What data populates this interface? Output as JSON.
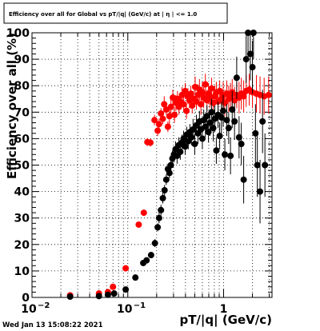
{
  "chart_data": {
    "type": "scatter",
    "title": "Efficiency over all for Global vs pT/|q| (GeV/c) at | η | <= 1.0",
    "xlabel": "pT/|q| (GeV/c)",
    "ylabel": "Efficiency over all (%)",
    "timestamp": "Wed Jan 13 15:08:22 2021",
    "x_scale": "log",
    "xlim": [
      0.01,
      3.2
    ],
    "ylim": [
      0,
      100
    ],
    "x_ticks": [
      {
        "value": 0.01,
        "label": "10",
        "sup": "−2"
      },
      {
        "value": 0.1,
        "label": "10",
        "sup": "−1"
      },
      {
        "value": 1,
        "label": "1",
        "sup": ""
      }
    ],
    "y_ticks": [
      0,
      10,
      20,
      30,
      40,
      50,
      60,
      70,
      80,
      90,
      100
    ],
    "grid": true,
    "series": [
      {
        "color": "#ff0000",
        "points": [
          [
            0.025,
            0.8,
            0.5
          ],
          [
            0.05,
            1.5,
            1
          ],
          [
            0.062,
            2,
            1
          ],
          [
            0.07,
            4,
            1
          ],
          [
            0.095,
            11,
            1
          ],
          [
            0.13,
            27.5,
            1
          ],
          [
            0.147,
            32,
            1
          ],
          [
            0.16,
            58.7,
            1.5
          ],
          [
            0.172,
            58.5,
            1.5
          ],
          [
            0.19,
            67,
            2
          ],
          [
            0.205,
            63,
            2
          ],
          [
            0.212,
            65.5,
            2
          ],
          [
            0.222,
            69.5,
            2
          ],
          [
            0.232,
            67.5,
            2
          ],
          [
            0.24,
            73,
            3
          ],
          [
            0.252,
            71,
            2
          ],
          [
            0.262,
            64.5,
            2
          ],
          [
            0.272,
            68.5,
            3
          ],
          [
            0.282,
            72,
            3
          ],
          [
            0.295,
            75.5,
            3
          ],
          [
            0.307,
            69,
            3
          ],
          [
            0.318,
            73.5,
            3
          ],
          [
            0.33,
            75,
            3
          ],
          [
            0.342,
            72,
            3
          ],
          [
            0.355,
            74,
            3
          ],
          [
            0.368,
            76.5,
            3
          ],
          [
            0.383,
            73,
            3
          ],
          [
            0.397,
            78,
            3
          ],
          [
            0.41,
            70.5,
            3
          ],
          [
            0.425,
            76,
            3
          ],
          [
            0.44,
            74.5,
            3
          ],
          [
            0.455,
            77,
            3
          ],
          [
            0.47,
            72.5,
            3
          ],
          [
            0.487,
            75,
            3
          ],
          [
            0.505,
            79.5,
            4
          ],
          [
            0.52,
            74,
            3
          ],
          [
            0.54,
            76.5,
            4
          ],
          [
            0.56,
            78.5,
            4
          ],
          [
            0.58,
            73,
            4
          ],
          [
            0.6,
            77.5,
            4
          ],
          [
            0.62,
            75.5,
            4
          ],
          [
            0.645,
            80.5,
            4
          ],
          [
            0.67,
            74.5,
            4
          ],
          [
            0.695,
            77,
            4
          ],
          [
            0.72,
            75.5,
            4
          ],
          [
            0.75,
            79,
            4
          ],
          [
            0.78,
            73.5,
            4
          ],
          [
            0.81,
            76,
            4
          ],
          [
            0.84,
            77.5,
            4
          ],
          [
            0.875,
            74,
            4
          ],
          [
            0.91,
            78,
            4
          ],
          [
            0.95,
            75,
            4
          ],
          [
            0.99,
            76.5,
            5
          ],
          [
            1.03,
            73.5,
            5
          ],
          [
            1.08,
            77,
            5
          ],
          [
            1.13,
            75,
            5
          ],
          [
            1.18,
            76,
            5
          ],
          [
            1.23,
            77.5,
            5
          ],
          [
            1.3,
            74.5,
            5
          ],
          [
            1.37,
            76.5,
            5
          ],
          [
            1.45,
            75.5,
            6
          ],
          [
            1.53,
            77,
            6
          ],
          [
            1.62,
            76,
            6
          ],
          [
            1.72,
            78,
            6
          ],
          [
            1.85,
            78.5,
            6
          ],
          [
            2.0,
            77.5,
            6
          ],
          [
            2.2,
            77,
            7
          ],
          [
            2.4,
            76.5,
            7
          ],
          [
            2.65,
            76,
            7
          ],
          [
            2.95,
            76.5,
            7
          ]
        ]
      },
      {
        "color": "#000000",
        "points": [
          [
            0.025,
            0.3,
            0.3
          ],
          [
            0.05,
            0.5,
            0.5
          ],
          [
            0.062,
            1,
            0.5
          ],
          [
            0.072,
            1.5,
            1
          ],
          [
            0.095,
            3,
            1
          ],
          [
            0.12,
            7.5,
            1
          ],
          [
            0.145,
            13,
            1
          ],
          [
            0.157,
            14,
            1
          ],
          [
            0.175,
            16,
            1
          ],
          [
            0.192,
            20.5,
            1.5
          ],
          [
            0.205,
            26.5,
            1.5
          ],
          [
            0.212,
            30,
            2
          ],
          [
            0.222,
            33,
            2
          ],
          [
            0.232,
            37.5,
            2
          ],
          [
            0.242,
            40.5,
            2
          ],
          [
            0.252,
            44.5,
            2
          ],
          [
            0.262,
            48.5,
            2
          ],
          [
            0.272,
            47,
            2
          ],
          [
            0.282,
            50,
            3
          ],
          [
            0.292,
            52.5,
            3
          ],
          [
            0.303,
            54,
            3
          ],
          [
            0.315,
            56,
            3
          ],
          [
            0.327,
            53.5,
            3
          ],
          [
            0.34,
            57.5,
            3
          ],
          [
            0.353,
            55,
            3
          ],
          [
            0.367,
            58.5,
            3
          ],
          [
            0.382,
            60,
            3
          ],
          [
            0.397,
            57,
            3
          ],
          [
            0.412,
            61.5,
            3
          ],
          [
            0.428,
            59,
            3
          ],
          [
            0.445,
            62.5,
            3
          ],
          [
            0.462,
            60.5,
            3
          ],
          [
            0.48,
            63.5,
            4
          ],
          [
            0.5,
            58,
            4
          ],
          [
            0.52,
            65,
            4
          ],
          [
            0.54,
            62,
            4
          ],
          [
            0.56,
            66.5,
            4
          ],
          [
            0.58,
            63.5,
            4
          ],
          [
            0.6,
            60,
            4
          ],
          [
            0.62,
            67,
            4
          ],
          [
            0.645,
            64.5,
            4
          ],
          [
            0.67,
            68.5,
            4
          ],
          [
            0.695,
            62.5,
            4
          ],
          [
            0.72,
            66,
            5
          ],
          [
            0.75,
            70,
            5
          ],
          [
            0.78,
            64,
            5
          ],
          [
            0.81,
            67.5,
            5
          ],
          [
            0.84,
            55.5,
            5
          ],
          [
            0.875,
            69,
            5
          ],
          [
            0.91,
            61,
            5
          ],
          [
            0.95,
            68,
            6
          ],
          [
            0.99,
            70.5,
            6
          ],
          [
            1.03,
            54,
            6
          ],
          [
            1.08,
            67,
            6
          ],
          [
            1.13,
            64,
            6
          ],
          [
            1.18,
            53.5,
            7
          ],
          [
            1.23,
            71,
            7
          ],
          [
            1.3,
            66.5,
            7
          ],
          [
            1.37,
            83,
            8
          ],
          [
            1.45,
            60.5,
            8
          ],
          [
            1.53,
            58,
            8
          ],
          [
            1.62,
            44.5,
            9
          ],
          [
            1.72,
            90,
            9
          ],
          [
            1.8,
            100,
            10
          ],
          [
            1.9,
            92,
            10
          ],
          [
            2.0,
            87,
            10
          ],
          [
            2.05,
            100,
            10
          ],
          [
            2.15,
            62,
            11
          ],
          [
            2.25,
            50,
            12
          ],
          [
            2.4,
            40,
            12
          ],
          [
            2.55,
            66.5,
            12
          ],
          [
            2.7,
            50,
            12
          ]
        ]
      }
    ]
  }
}
